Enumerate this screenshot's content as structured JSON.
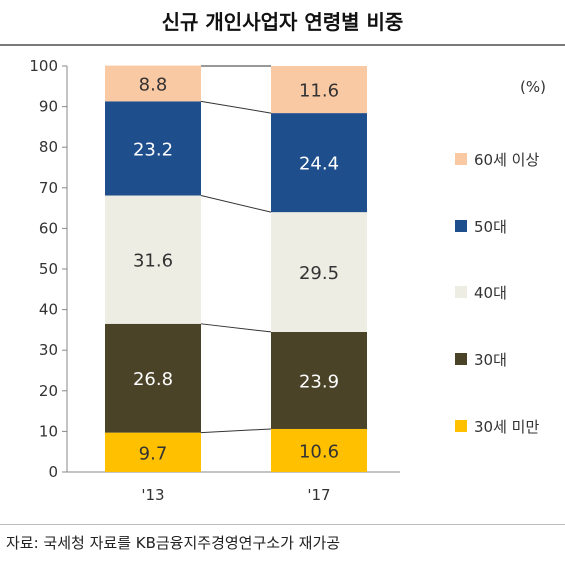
{
  "title": "신규 개인사업자 연령별 비중",
  "source": "자료: 국세청 자료를 KB금융지주경영연구소가 재가공",
  "chart_data": {
    "type": "bar",
    "stacked": true,
    "unit": "(%)",
    "categories": [
      "'13",
      "'17"
    ],
    "ylim": [
      0,
      100
    ],
    "yticks": [
      0,
      10,
      20,
      30,
      40,
      50,
      60,
      70,
      80,
      90,
      100
    ],
    "series": [
      {
        "name": "30세 미만",
        "values": [
          9.7,
          10.6
        ],
        "color": "#FFC000",
        "label_color": "#333333"
      },
      {
        "name": "30대",
        "values": [
          26.8,
          23.9
        ],
        "color": "#4A4328",
        "label_color": "#FFFFFF"
      },
      {
        "name": "40대",
        "values": [
          31.6,
          29.5
        ],
        "color": "#EEEDE4",
        "label_color": "#333333"
      },
      {
        "name": "50대",
        "values": [
          23.2,
          24.4
        ],
        "color": "#1F4E8C",
        "label_color": "#FFFFFF"
      },
      {
        "name": "60세 이상",
        "values": [
          8.8,
          11.6
        ],
        "color": "#F9C9A4",
        "label_color": "#333333"
      }
    ],
    "legend_position": "right",
    "grid": false
  }
}
